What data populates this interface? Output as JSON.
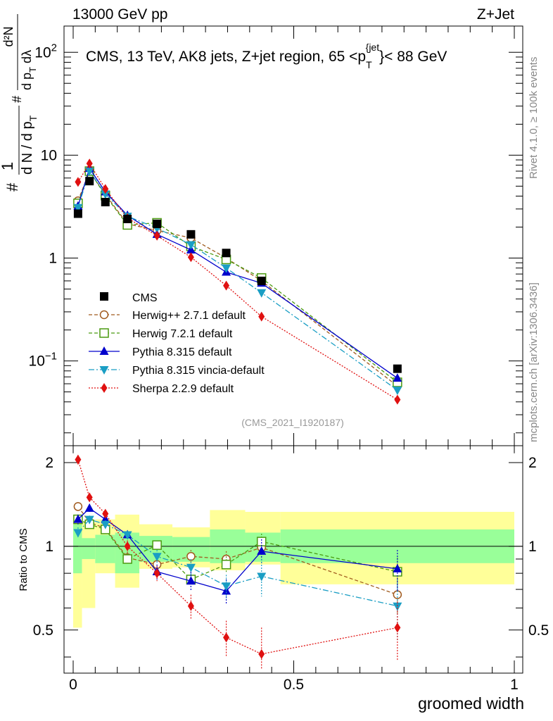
{
  "header": {
    "left": "13000 GeV pp",
    "right": "Z+Jet"
  },
  "side_labels": {
    "rivet": "Rivet 4.1.0, ≥ 100k events",
    "mcplots": "mcplots.cern.ch [arXiv:1306.3436]"
  },
  "chart_data": {
    "type": "scatter",
    "title": "CMS, 13 TeV, AK8 jets, Z+jet region, 65 <p_T^{jet}< 88 GeV",
    "title_main": "CMS, 13 TeV, AK8 jets, Z+jet region, 65 <p",
    "title_sub": "T",
    "title_sup": "{jet",
    "title_close": "}",
    "title_end": "< 88 GeV",
    "analysis": "(CMS_2021_I1920187)",
    "xlabel": "groomed width",
    "ylabel_top": {
      "prefix": "#",
      "frac1_num": "1",
      "frac1_den": "d N / d p",
      "frac1_den_sub": "T",
      "frac2_num": "d²N",
      "frac2_den": "d p",
      "frac2_den_sub": "T",
      "frac2_den_end": " dλ",
      "inner_hash": "#"
    },
    "ylabel_ratio": "Ratio to CMS",
    "xlim": [
      0,
      1
    ],
    "ylim_main": [
      0.015,
      180
    ],
    "ylim_ratio": [
      0.35,
      2.3
    ],
    "x_ticks": [
      {
        "v": 0,
        "label": "0"
      },
      {
        "v": 0.5,
        "label": "0.5"
      },
      {
        "v": 1,
        "label": "1"
      }
    ],
    "y_ticks_main": [
      {
        "v": 0.1,
        "base": "10",
        "exp": "−1"
      },
      {
        "v": 1,
        "base": "1",
        "exp": ""
      },
      {
        "v": 10,
        "base": "10",
        "exp": ""
      },
      {
        "v": 100,
        "base": "10",
        "exp": "2"
      }
    ],
    "y_ticks_ratio": [
      {
        "v": 0.5,
        "label": "0.5"
      },
      {
        "v": 1,
        "label": "1"
      },
      {
        "v": 2,
        "label": "2"
      }
    ],
    "bin_edges": [
      0,
      0.02,
      0.05,
      0.095,
      0.15,
      0.225,
      0.31,
      0.39,
      0.47,
      1.0
    ],
    "x": [
      0.011,
      0.037,
      0.073,
      0.123,
      0.19,
      0.267,
      0.347,
      0.427,
      0.735
    ],
    "data": {
      "name": "CMS",
      "values": [
        2.7,
        5.6,
        3.5,
        2.4,
        2.15,
        1.7,
        1.12,
        0.6,
        0.084
      ],
      "band_inner": [
        [
          0.8,
          1.2
        ],
        [
          0.9,
          1.07
        ],
        [
          0.87,
          1.1
        ],
        [
          0.8,
          1.12
        ],
        [
          0.88,
          1.09
        ],
        [
          0.88,
          1.08
        ],
        [
          0.87,
          1.15
        ],
        [
          0.88,
          1.12
        ],
        [
          0.87,
          1.15
        ]
      ],
      "band_outer": [
        [
          0.51,
          1.3
        ],
        [
          0.6,
          1.22
        ],
        [
          0.8,
          1.25
        ],
        [
          0.71,
          1.3
        ],
        [
          0.83,
          1.2
        ],
        [
          0.84,
          1.17
        ],
        [
          0.82,
          1.35
        ],
        [
          0.86,
          1.33
        ],
        [
          0.73,
          1.33
        ]
      ]
    },
    "series": [
      {
        "name": "Herwig++ 2.7.1 default",
        "color": "#a05a1e",
        "marker": "circle-open",
        "dash": "5,3",
        "values": [
          3.6,
          6.95,
          4.15,
          2.15,
          1.85,
          1.57,
          1.0,
          0.6,
          0.057
        ],
        "ratio": [
          1.39,
          1.22,
          1.16,
          0.91,
          0.86,
          0.92,
          0.9,
          0.99,
          0.67
        ],
        "ratio_err": [
          0.05,
          0.04,
          0.04,
          0.04,
          0.04,
          0.05,
          0.06,
          0.07,
          0.1
        ]
      },
      {
        "name": "Herwig 7.2.1 default",
        "color": "#4a9a10",
        "marker": "square-open",
        "dash": "5,3",
        "values": [
          3.4,
          7.0,
          4.05,
          2.1,
          2.2,
          1.3,
          0.97,
          0.64,
          0.062
        ],
        "ratio": [
          1.25,
          1.2,
          1.15,
          0.9,
          1.01,
          0.76,
          0.86,
          1.04,
          0.81
        ],
        "ratio_err": [
          0.05,
          0.04,
          0.04,
          0.04,
          0.04,
          0.05,
          0.06,
          0.07,
          0.1
        ]
      },
      {
        "name": "Pythia 8.315 default",
        "color": "#0000cc",
        "marker": "triangle-up",
        "dash": "",
        "values": [
          3.2,
          7.45,
          4.4,
          2.6,
          1.7,
          1.2,
          0.73,
          0.57,
          0.068
        ],
        "ratio": [
          1.25,
          1.37,
          1.25,
          1.1,
          0.81,
          0.75,
          0.69,
          0.96,
          0.83
        ],
        "ratio_err": [
          0.05,
          0.04,
          0.04,
          0.04,
          0.05,
          0.06,
          0.07,
          0.1,
          0.14
        ]
      },
      {
        "name": "Pythia 8.315 vincia-default",
        "color": "#1a9ec4",
        "marker": "triangle-down",
        "dash": "8,3,2,3",
        "values": [
          3.1,
          7.0,
          4.2,
          2.55,
          1.95,
          1.35,
          0.8,
          0.46,
          0.052
        ],
        "ratio": [
          1.12,
          1.25,
          1.2,
          1.1,
          0.92,
          0.84,
          0.72,
          0.78,
          0.61
        ],
        "ratio_err": [
          0.05,
          0.04,
          0.04,
          0.04,
          0.05,
          0.06,
          0.07,
          0.12,
          0.15
        ]
      },
      {
        "name": "Sherpa 2.2.9 default",
        "color": "#e01010",
        "marker": "diamond",
        "dash": "2,2",
        "values": [
          5.5,
          8.3,
          4.7,
          2.45,
          1.65,
          1.02,
          0.54,
          0.27,
          0.042
        ],
        "ratio": [
          2.05,
          1.5,
          1.31,
          1.0,
          0.8,
          0.61,
          0.47,
          0.41,
          0.51
        ],
        "ratio_err": [
          0.08,
          0.05,
          0.04,
          0.05,
          0.05,
          0.06,
          0.07,
          0.1,
          0.12
        ]
      }
    ]
  }
}
